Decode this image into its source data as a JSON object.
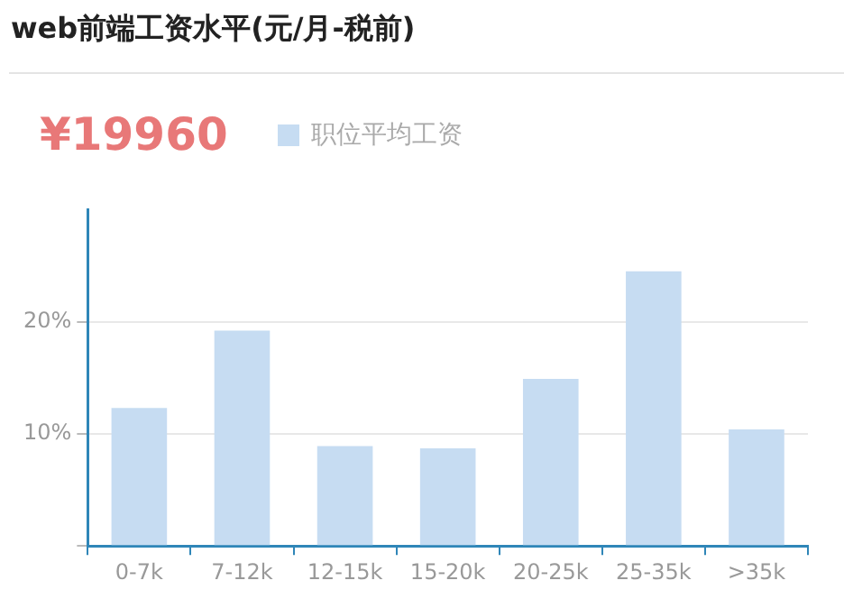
{
  "chart_data": {
    "type": "bar",
    "title": "web前端工资水平(元/月-税前)",
    "annotations": [
      "¥19960"
    ],
    "categories": [
      "0-7k",
      "7-12k",
      "12-15k",
      "15-20k",
      "20-25k",
      "25-35k",
      ">35k"
    ],
    "series": [
      {
        "name": "职位平均工资",
        "color": "#c6dcf2",
        "values": [
          12.3,
          19.2,
          8.9,
          8.7,
          14.9,
          24.5,
          10.4
        ]
      }
    ],
    "ylim": [
      0,
      30
    ],
    "yticks": [
      {
        "value": 0,
        "label": null
      },
      {
        "value": 10,
        "label": "10%"
      },
      {
        "value": 20,
        "label": "20%"
      }
    ],
    "grid": "y",
    "legend": "top"
  }
}
